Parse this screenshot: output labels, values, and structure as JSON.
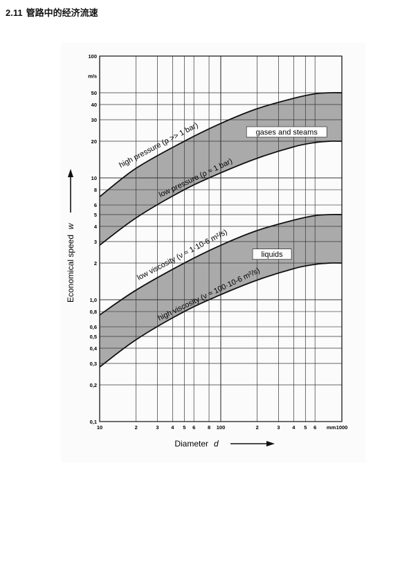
{
  "header": {
    "section_number": "2.11",
    "section_title": "管路中的经济流速"
  },
  "chart_data": {
    "type": "area",
    "x_scale": "log",
    "y_scale": "log",
    "xlim": [
      10,
      1000
    ],
    "ylim": [
      0.1,
      100
    ],
    "xlabel": "Diameter",
    "xlabel_symbol": "d",
    "ylabel": "Economical speed",
    "ylabel_symbol": "w",
    "y_unit": "m/s",
    "x_unit": "mm",
    "x_ticks": [
      {
        "v": 10,
        "t": "10"
      },
      {
        "v": 20,
        "t": "2"
      },
      {
        "v": 30,
        "t": "3"
      },
      {
        "v": 40,
        "t": "4"
      },
      {
        "v": 50,
        "t": "5"
      },
      {
        "v": 60,
        "t": "6"
      },
      {
        "v": 80,
        "t": "8"
      },
      {
        "v": 100,
        "t": "100"
      },
      {
        "v": 200,
        "t": "2"
      },
      {
        "v": 300,
        "t": "3"
      },
      {
        "v": 400,
        "t": "4"
      },
      {
        "v": 500,
        "t": "5"
      },
      {
        "v": 600,
        "t": "6"
      },
      {
        "v": 1000,
        "t": "1000"
      }
    ],
    "y_ticks": [
      {
        "v": 0.1,
        "t": "0,1"
      },
      {
        "v": 0.2,
        "t": "0,2"
      },
      {
        "v": 0.3,
        "t": "0,3"
      },
      {
        "v": 0.4,
        "t": "0,4"
      },
      {
        "v": 0.5,
        "t": "0,5"
      },
      {
        "v": 0.6,
        "t": "0,6"
      },
      {
        "v": 0.8,
        "t": "0,8"
      },
      {
        "v": 1,
        "t": "1,0"
      },
      {
        "v": 2,
        "t": "2"
      },
      {
        "v": 3,
        "t": "3"
      },
      {
        "v": 4,
        "t": "4"
      },
      {
        "v": 5,
        "t": "5"
      },
      {
        "v": 6,
        "t": "6"
      },
      {
        "v": 8,
        "t": "8"
      },
      {
        "v": 10,
        "t": "10"
      },
      {
        "v": 20,
        "t": "20"
      },
      {
        "v": 30,
        "t": "30"
      },
      {
        "v": 40,
        "t": "40"
      },
      {
        "v": 50,
        "t": "50"
      },
      {
        "v": 100,
        "t": "100"
      }
    ],
    "bands": [
      {
        "name": "gases and steams",
        "upper": {
          "label": "high pressure (ρ >> 1 bar)",
          "points": [
            [
              10,
              7
            ],
            [
              20,
              12
            ],
            [
              50,
              20
            ],
            [
              100,
              28
            ],
            [
              200,
              37
            ],
            [
              400,
              45
            ],
            [
              600,
              49
            ],
            [
              800,
              50
            ],
            [
              1000,
              50
            ]
          ]
        },
        "lower": {
          "label": "low pressure (ρ ≈ 1 bar)",
          "points": [
            [
              10,
              2.8
            ],
            [
              20,
              4.7
            ],
            [
              50,
              8
            ],
            [
              100,
              11
            ],
            [
              200,
              14.5
            ],
            [
              400,
              18
            ],
            [
              600,
              19.5
            ],
            [
              800,
              20
            ],
            [
              1000,
              20
            ]
          ]
        }
      },
      {
        "name": "liquids",
        "upper": {
          "label": "low viscosity (ν ≈ 1·10-6 m²/s)",
          "points": [
            [
              10,
              0.75
            ],
            [
              20,
              1.2
            ],
            [
              50,
              2
            ],
            [
              100,
              2.8
            ],
            [
              200,
              3.7
            ],
            [
              400,
              4.5
            ],
            [
              600,
              4.9
            ],
            [
              800,
              5
            ],
            [
              1000,
              5
            ]
          ]
        },
        "lower": {
          "label": "high viscosity (ν ≈ 100·10-6 m²/s)",
          "points": [
            [
              10,
              0.28
            ],
            [
              20,
              0.47
            ],
            [
              50,
              0.8
            ],
            [
              100,
              1.1
            ],
            [
              200,
              1.45
            ],
            [
              400,
              1.8
            ],
            [
              600,
              1.95
            ],
            [
              800,
              2
            ],
            [
              1000,
              2
            ]
          ]
        }
      }
    ],
    "colors": {
      "band_fill": "#8a8a8a",
      "curve": "#111111",
      "grid": "#333333"
    }
  }
}
